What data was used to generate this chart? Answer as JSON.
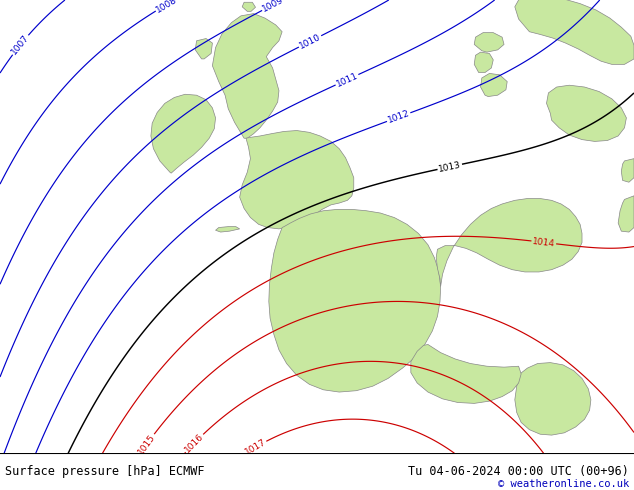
{
  "title_left": "Surface pressure [hPa] ECMWF",
  "title_right": "Tu 04-06-2024 00:00 UTC (00+96)",
  "copyright": "© weatheronline.co.uk",
  "bg_color": "#d0d0d0",
  "land_color": "#c8e8a0",
  "coast_color": "#888888",
  "blue_color": "#0000cc",
  "red_color": "#cc0000",
  "black_color": "#000000",
  "label_fontsize": 6.5,
  "footer_fontsize": 8.5,
  "figsize": [
    6.34,
    4.9
  ],
  "dpi": 100
}
